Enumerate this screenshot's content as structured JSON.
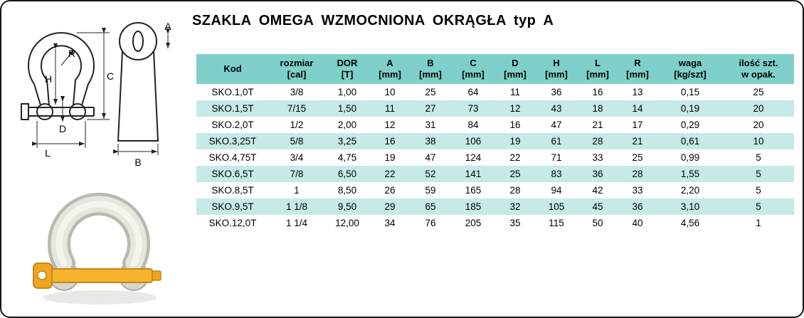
{
  "title": "SZAKLA OMEGA WZMOCNIONA OKRĄGŁA typ A",
  "diagrams": {
    "front_view": {
      "labels": {
        "R": "R",
        "H": "H",
        "C": "C",
        "D": "D",
        "L": "L"
      }
    },
    "side_view": {
      "labels": {
        "A": "A",
        "B": "B"
      }
    }
  },
  "colors": {
    "header_bg": "#7fd0ca",
    "row_alt_bg": "#c5eae7",
    "row_bg": "#ffffff",
    "pin_yellow": "#f5b42e",
    "body_gray": "#e6e6df",
    "text": "#000000"
  },
  "table": {
    "headers": [
      {
        "line1": "Kod",
        "line2": ""
      },
      {
        "line1": "rozmiar",
        "line2": "[cal]"
      },
      {
        "line1": "DOR",
        "line2": "[T]"
      },
      {
        "line1": "A",
        "line2": "[mm]"
      },
      {
        "line1": "B",
        "line2": "[mm]"
      },
      {
        "line1": "C",
        "line2": "[mm]"
      },
      {
        "line1": "D",
        "line2": "[mm]"
      },
      {
        "line1": "H",
        "line2": "[mm]"
      },
      {
        "line1": "L",
        "line2": "[mm]"
      },
      {
        "line1": "R",
        "line2": "[mm]"
      },
      {
        "line1": "waga",
        "line2": "[kg/szt]"
      },
      {
        "line1": "ilość szt.",
        "line2": "w opak."
      }
    ],
    "rows": [
      [
        "SKO.1,0T",
        "3/8",
        "1,00",
        "10",
        "25",
        "64",
        "11",
        "36",
        "16",
        "13",
        "0,15",
        "25"
      ],
      [
        "SKO.1,5T",
        "7/15",
        "1,50",
        "11",
        "27",
        "73",
        "12",
        "43",
        "18",
        "14",
        "0,19",
        "20"
      ],
      [
        "SKO.2,0T",
        "1/2",
        "2,00",
        "12",
        "31",
        "84",
        "16",
        "47",
        "21",
        "17",
        "0,29",
        "20"
      ],
      [
        "SKO.3,25T",
        "5/8",
        "3,25",
        "16",
        "38",
        "106",
        "19",
        "61",
        "28",
        "21",
        "0,61",
        "10"
      ],
      [
        "SKO.4,75T",
        "3/4",
        "4,75",
        "19",
        "47",
        "124",
        "22",
        "71",
        "33",
        "25",
        "0,99",
        "5"
      ],
      [
        "SKO.6,5T",
        "7/8",
        "6,50",
        "22",
        "52",
        "141",
        "25",
        "83",
        "36",
        "28",
        "1,55",
        "5"
      ],
      [
        "SKO.8,5T",
        "1",
        "8,50",
        "26",
        "59",
        "165",
        "28",
        "94",
        "42",
        "33",
        "2,20",
        "5"
      ],
      [
        "SKO.9,5T",
        "1 1/8",
        "9,50",
        "29",
        "65",
        "185",
        "32",
        "105",
        "45",
        "36",
        "3,10",
        "5"
      ],
      [
        "SKO.12,0T",
        "1 1/4",
        "12,00",
        "34",
        "76",
        "205",
        "35",
        "115",
        "50",
        "40",
        "4,56",
        "1"
      ]
    ]
  }
}
